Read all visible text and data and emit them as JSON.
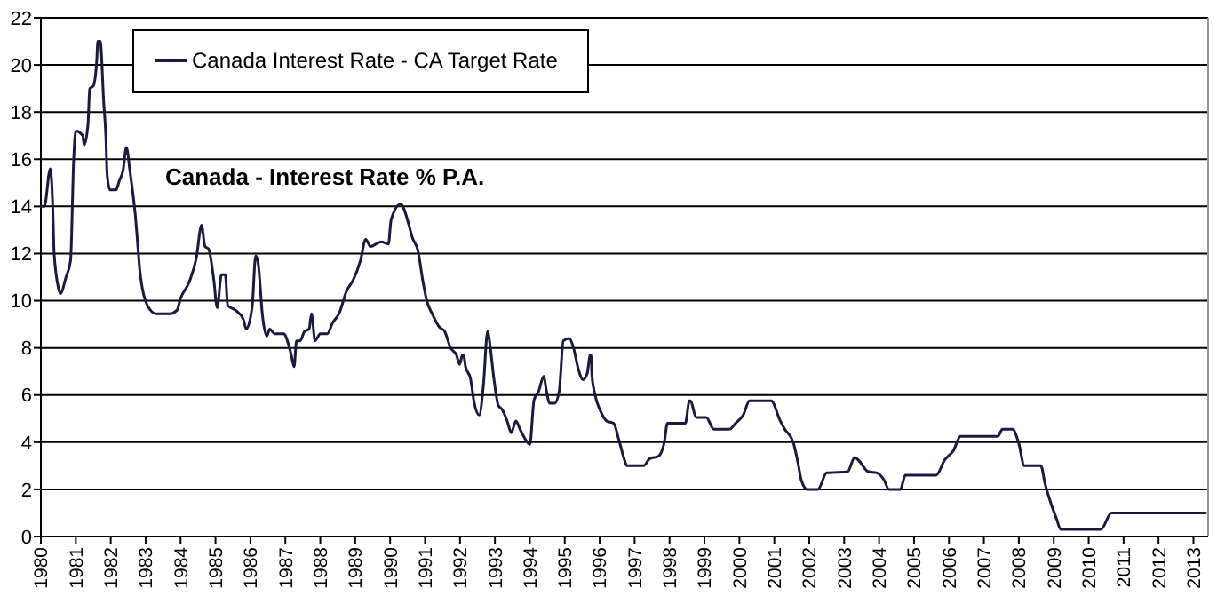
{
  "chart_data": {
    "type": "line",
    "title": "Canada - Interest Rate % P.A.",
    "legend": "top left",
    "grid": "y",
    "marker": "none",
    "line_style": "solid",
    "xlim": [
      1980,
      2013.42
    ],
    "xticks": [
      1980,
      1981,
      1982,
      1983,
      1984,
      1985,
      1986,
      1987,
      1988,
      1989,
      1990,
      1991,
      1992,
      1993,
      1994,
      1995,
      1996,
      1997,
      1998,
      1999,
      2000,
      2001,
      2002,
      2003,
      2004,
      2005,
      2006,
      2007,
      2008,
      2009,
      2010,
      2011,
      2012,
      2013
    ],
    "ylim": [
      0,
      22
    ],
    "yticks": [
      0,
      2,
      4,
      6,
      8,
      10,
      12,
      14,
      16,
      18,
      20,
      22
    ],
    "series": [
      {
        "name": "Canada Interest Rate - CA Target Rate",
        "color": "#1a1a40",
        "x": [
          1980.0,
          1980.1,
          1980.27,
          1980.34,
          1980.38,
          1980.51,
          1980.56,
          1980.72,
          1980.85,
          1980.94,
          1981.0,
          1981.2,
          1981.24,
          1981.35,
          1981.4,
          1981.5,
          1981.6,
          1981.63,
          1981.7,
          1981.8,
          1981.86,
          1981.9,
          1981.98,
          1982.15,
          1982.25,
          1982.35,
          1982.45,
          1982.55,
          1982.7,
          1982.84,
          1983.05,
          1983.3,
          1983.7,
          1983.9,
          1984.0,
          1984.25,
          1984.45,
          1984.6,
          1984.7,
          1984.8,
          1984.95,
          1985.05,
          1985.17,
          1985.28,
          1985.35,
          1985.57,
          1985.8,
          1985.88,
          1986.05,
          1986.15,
          1986.22,
          1986.35,
          1986.47,
          1986.55,
          1986.7,
          1986.95,
          1987.1,
          1987.17,
          1987.25,
          1987.32,
          1987.42,
          1987.55,
          1987.68,
          1987.75,
          1987.85,
          1988.0,
          1988.2,
          1988.35,
          1988.55,
          1988.75,
          1988.95,
          1989.15,
          1989.3,
          1989.44,
          1989.75,
          1989.95,
          1990.03,
          1990.3,
          1990.54,
          1990.63,
          1990.8,
          1990.93,
          1991.05,
          1991.22,
          1991.4,
          1991.56,
          1991.73,
          1991.9,
          1991.99,
          1992.07,
          1992.1,
          1992.16,
          1992.3,
          1992.41,
          1992.55,
          1992.67,
          1992.79,
          1992.87,
          1992.97,
          1993.1,
          1993.2,
          1993.35,
          1993.47,
          1993.6,
          1993.72,
          1993.86,
          1994.0,
          1994.12,
          1994.25,
          1994.4,
          1994.46,
          1994.57,
          1994.71,
          1994.84,
          1994.96,
          1995.13,
          1995.25,
          1995.38,
          1995.52,
          1995.64,
          1995.73,
          1995.75,
          1995.78,
          1995.86,
          1996.03,
          1996.2,
          1996.4,
          1996.54,
          1996.71,
          1996.78,
          1997.26,
          1997.43,
          1997.68,
          1997.85,
          1997.94,
          1998.45,
          1998.57,
          1998.6,
          1998.76,
          1999.05,
          1999.27,
          1999.72,
          1999.89,
          2000.11,
          2000.29,
          2000.91,
          2001.17,
          2001.3,
          2001.54,
          2001.68,
          2001.77,
          2001.94,
          2002.25,
          2002.5,
          2003.1,
          2003.3,
          2003.4,
          2003.69,
          2003.94,
          2004.14,
          2004.28,
          2004.61,
          2004.75,
          2005.63,
          2005.88,
          2006.13,
          2006.33,
          2007.4,
          2007.53,
          2007.82,
          2007.99,
          2008.16,
          2008.63,
          2008.75,
          2008.92,
          2009.08,
          2009.2,
          2010.35,
          2010.65,
          2013.35
        ],
        "values": [
          14.0,
          14.0,
          15.6,
          14.0,
          12.0,
          10.5,
          10.3,
          11.0,
          11.7,
          16.0,
          17.2,
          17.0,
          16.6,
          17.5,
          19.0,
          19.1,
          20.2,
          21.0,
          21.0,
          18.4,
          17.0,
          15.3,
          14.7,
          14.7,
          15.1,
          15.5,
          16.5,
          15.5,
          13.7,
          11.2,
          9.8,
          9.45,
          9.45,
          9.6,
          10.1,
          10.8,
          11.8,
          13.2,
          12.3,
          12.2,
          10.9,
          9.7,
          11.1,
          11.1,
          9.8,
          9.6,
          9.2,
          8.8,
          9.75,
          11.9,
          11.6,
          9.3,
          8.5,
          8.8,
          8.6,
          8.6,
          8.1,
          7.7,
          7.2,
          8.3,
          8.3,
          8.7,
          8.8,
          9.45,
          8.3,
          8.6,
          8.6,
          9.05,
          9.5,
          10.4,
          10.9,
          11.7,
          12.6,
          12.3,
          12.5,
          12.4,
          13.45,
          14.1,
          13.2,
          12.7,
          12.1,
          10.9,
          10.0,
          9.4,
          8.9,
          8.7,
          8.0,
          7.7,
          7.3,
          7.7,
          7.7,
          7.2,
          6.7,
          5.65,
          5.15,
          6.4,
          8.7,
          8.0,
          6.7,
          5.55,
          5.4,
          4.9,
          4.4,
          4.9,
          4.55,
          4.15,
          3.9,
          5.8,
          6.15,
          6.8,
          6.3,
          5.65,
          5.65,
          6.15,
          8.3,
          8.4,
          8.0,
          7.15,
          6.65,
          6.9,
          7.7,
          7.7,
          6.8,
          6.05,
          5.3,
          4.9,
          4.8,
          4.15,
          3.25,
          3.0,
          3.0,
          3.3,
          3.4,
          4.0,
          4.8,
          4.8,
          5.75,
          5.75,
          5.05,
          5.05,
          4.55,
          4.55,
          4.8,
          5.15,
          5.75,
          5.75,
          4.9,
          4.55,
          4.0,
          3.1,
          2.4,
          2.0,
          2.0,
          2.7,
          2.75,
          3.35,
          3.25,
          2.75,
          2.7,
          2.4,
          2.0,
          2.0,
          2.6,
          2.6,
          3.25,
          3.65,
          4.25,
          4.25,
          4.55,
          4.55,
          4.0,
          3.0,
          3.0,
          2.25,
          1.4,
          0.75,
          0.3,
          0.3,
          1.0,
          1.0
        ]
      }
    ]
  }
}
